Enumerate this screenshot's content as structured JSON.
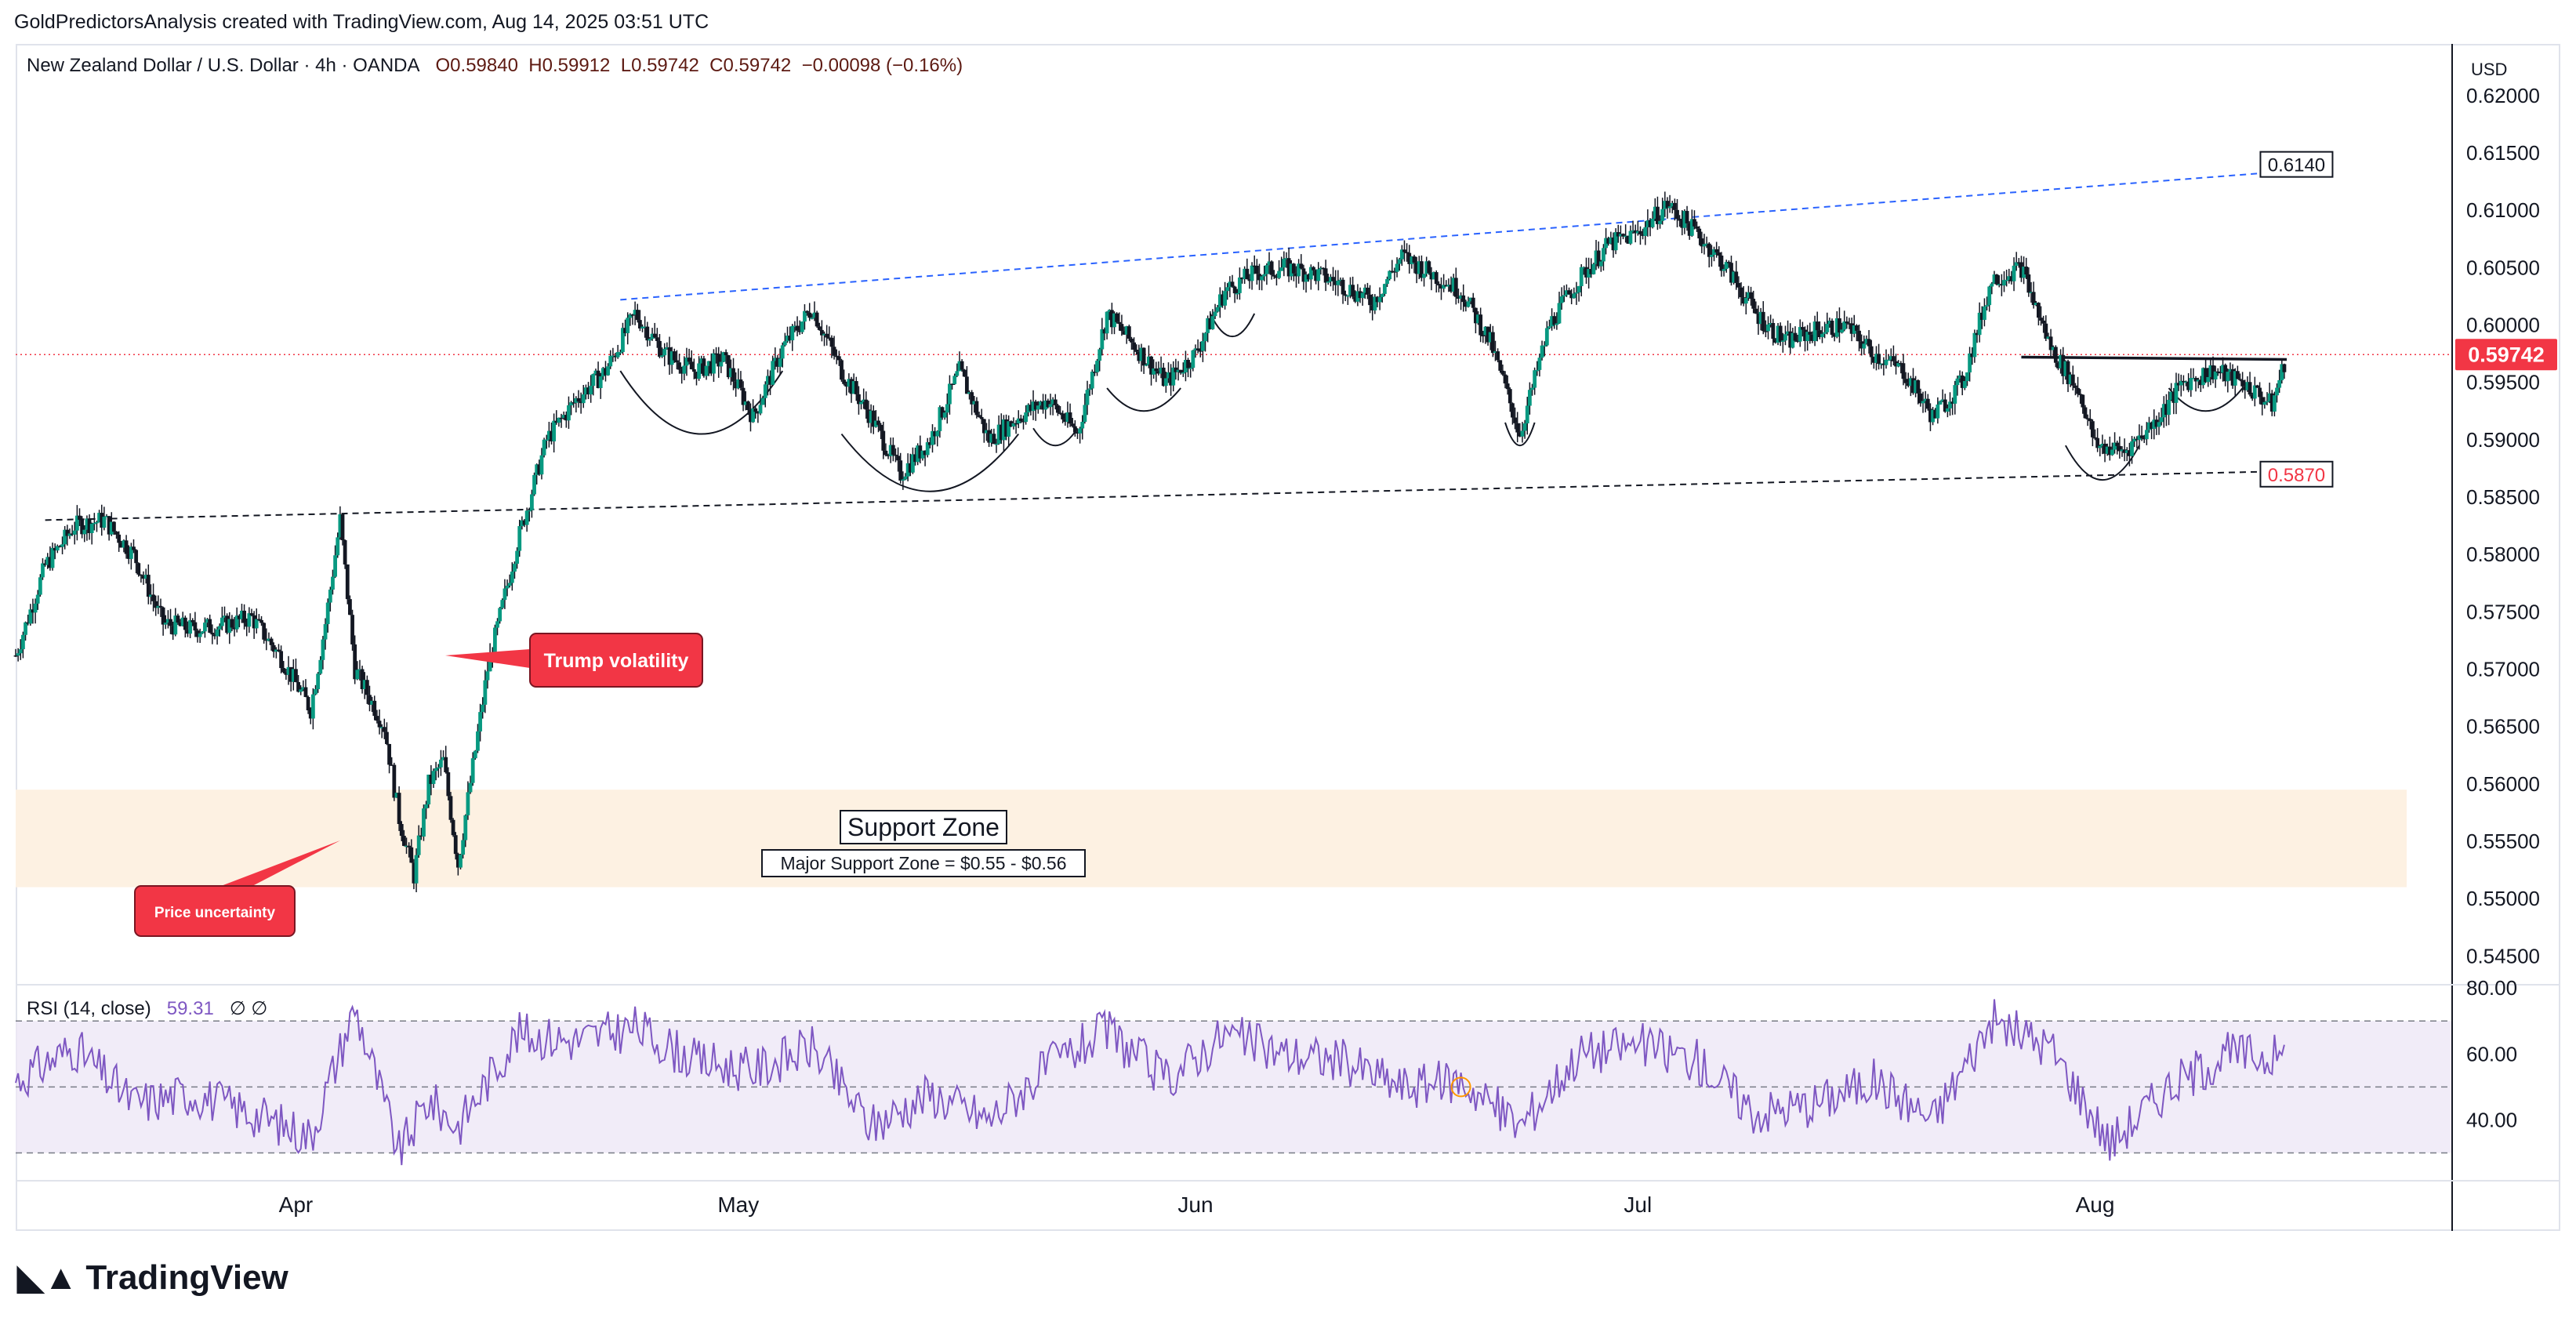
{
  "header": "GoldPredictorsAnalysis created with TradingView.com, Aug 14, 2025 03:51 UTC",
  "legend": {
    "symbol": "New Zealand Dollar / U.S. Dollar · 4h · OANDA",
    "open": "O0.59840",
    "high": "H0.59912",
    "low": "L0.59742",
    "close": "C0.59742",
    "change": "−0.00098 (−0.16%)"
  },
  "rsi_legend": {
    "name": "RSI (14, close)",
    "value": "59.31",
    "extra": "∅ ∅"
  },
  "currency": "USD",
  "last_price": "0.59742",
  "colors": {
    "up": "#089981",
    "down": "#f23645",
    "rsi": "#7e57c2",
    "zone": "#fdf1e2",
    "callout": "#f23645",
    "trend_blue": "#2962ff"
  },
  "annotations": {
    "trump": "Trump volatility",
    "uncertainty": "Price uncertainty",
    "zone_title": "Support Zone",
    "zone_sub": "Major Support Zone = $0.55 - $0.56",
    "upper_target": "0.6140",
    "lower_level": "0.5870"
  },
  "brand": "TradingView",
  "chart_data": [
    {
      "type": "line",
      "title": "New Zealand Dollar / U.S. Dollar · 4h · OANDA",
      "xlabel": "",
      "ylabel": "USD",
      "x_ticks": [
        "Apr",
        "May",
        "Jun",
        "Jul",
        "Aug"
      ],
      "x_tick_dates": [
        "2025-04-01",
        "2025-05-01",
        "2025-06-01",
        "2025-07-01",
        "2025-08-01"
      ],
      "y_ticks": [
        0.62,
        0.615,
        0.61,
        0.605,
        0.6,
        0.595,
        0.59,
        0.585,
        0.58,
        0.575,
        0.57,
        0.565,
        0.56,
        0.555,
        0.55,
        0.545
      ],
      "ylim": [
        0.5425,
        0.6245
      ],
      "xlim": [
        "2025-03-13",
        "2025-08-25"
      ],
      "series": [
        {
          "dates": [
            "2025-03-13",
            "2025-03-15",
            "2025-03-17",
            "2025-03-19",
            "2025-03-21",
            "2025-03-23",
            "2025-03-25",
            "2025-03-27",
            "2025-03-29",
            "2025-03-31",
            "2025-04-02",
            "2025-04-03",
            "2025-04-04",
            "2025-04-05",
            "2025-04-07",
            "2025-04-08",
            "2025-04-09",
            "2025-04-10",
            "2025-04-11",
            "2025-04-12",
            "2025-04-14",
            "2025-04-16",
            "2025-04-18",
            "2025-04-20",
            "2025-04-22",
            "2025-04-24",
            "2025-04-26",
            "2025-04-28",
            "2025-04-30",
            "2025-05-02",
            "2025-05-04",
            "2025-05-06",
            "2025-05-08",
            "2025-05-10",
            "2025-05-12",
            "2025-05-14",
            "2025-05-16",
            "2025-05-18",
            "2025-05-20",
            "2025-05-22",
            "2025-05-24",
            "2025-05-26",
            "2025-05-28",
            "2025-05-30",
            "2025-06-01",
            "2025-06-03",
            "2025-06-05",
            "2025-06-07",
            "2025-06-09",
            "2025-06-11",
            "2025-06-13",
            "2025-06-15",
            "2025-06-17",
            "2025-06-19",
            "2025-06-21",
            "2025-06-23",
            "2025-06-25",
            "2025-06-27",
            "2025-06-29",
            "2025-07-01",
            "2025-07-03",
            "2025-07-05",
            "2025-07-07",
            "2025-07-09",
            "2025-07-11",
            "2025-07-13",
            "2025-07-15",
            "2025-07-17",
            "2025-07-19",
            "2025-07-21",
            "2025-07-23",
            "2025-07-25",
            "2025-07-27",
            "2025-07-29",
            "2025-07-31",
            "2025-08-01",
            "2025-08-03",
            "2025-08-05",
            "2025-08-07",
            "2025-08-09",
            "2025-08-11",
            "2025-08-13",
            "2025-08-14"
          ],
          "values": [
            0.5712,
            0.579,
            0.5825,
            0.583,
            0.58,
            0.574,
            0.5735,
            0.5738,
            0.5745,
            0.571,
            0.5665,
            0.574,
            0.583,
            0.57,
            0.565,
            0.557,
            0.552,
            0.56,
            0.562,
            0.553,
            0.57,
            0.581,
            0.59,
            0.5935,
            0.596,
            0.601,
            0.5975,
            0.596,
            0.597,
            0.592,
            0.598,
            0.6015,
            0.596,
            0.592,
            0.587,
            0.59,
            0.596,
            0.59,
            0.592,
            0.5935,
            0.5905,
            0.601,
            0.598,
            0.595,
            0.5975,
            0.603,
            0.6045,
            0.605,
            0.6045,
            0.6035,
            0.602,
            0.606,
            0.6045,
            0.603,
            0.5985,
            0.5905,
            0.6,
            0.604,
            0.607,
            0.608,
            0.6105,
            0.608,
            0.605,
            0.601,
            0.5985,
            0.5995,
            0.6,
            0.5975,
            0.596,
            0.592,
            0.595,
            0.604,
            0.605,
            0.598,
            0.594,
            0.5895,
            0.589,
            0.5915,
            0.595,
            0.596,
            0.595,
            0.593,
            0.5974
          ]
        }
      ]
    },
    {
      "type": "line",
      "title": "RSI (14, close)",
      "ylim": [
        23,
        81
      ],
      "y_ticks": [
        80,
        60,
        40
      ],
      "bands": [
        30,
        50,
        70
      ],
      "last_value": 59.31,
      "series": [
        {
          "dates": [
            "2025-03-13",
            "2025-03-17",
            "2025-03-21",
            "2025-03-25",
            "2025-03-29",
            "2025-04-02",
            "2025-04-05",
            "2025-04-08",
            "2025-04-10",
            "2025-04-12",
            "2025-04-16",
            "2025-04-20",
            "2025-04-24",
            "2025-04-28",
            "2025-05-02",
            "2025-05-06",
            "2025-05-10",
            "2025-05-14",
            "2025-05-18",
            "2025-05-22",
            "2025-05-26",
            "2025-05-30",
            "2025-06-03",
            "2025-06-07",
            "2025-06-11",
            "2025-06-15",
            "2025-06-19",
            "2025-06-23",
            "2025-06-27",
            "2025-07-01",
            "2025-07-05",
            "2025-07-09",
            "2025-07-13",
            "2025-07-17",
            "2025-07-21",
            "2025-07-25",
            "2025-07-29",
            "2025-08-02",
            "2025-08-06",
            "2025-08-10",
            "2025-08-14"
          ],
          "values": [
            52,
            62,
            45,
            48,
            42,
            35,
            74,
            30,
            46,
            38,
            66,
            64,
            68,
            58,
            55,
            62,
            38,
            48,
            40,
            56,
            67,
            52,
            66,
            60,
            58,
            50,
            52,
            38,
            60,
            63,
            58,
            42,
            45,
            52,
            40,
            70,
            62,
            33,
            50,
            60,
            59.31
          ]
        }
      ]
    }
  ]
}
